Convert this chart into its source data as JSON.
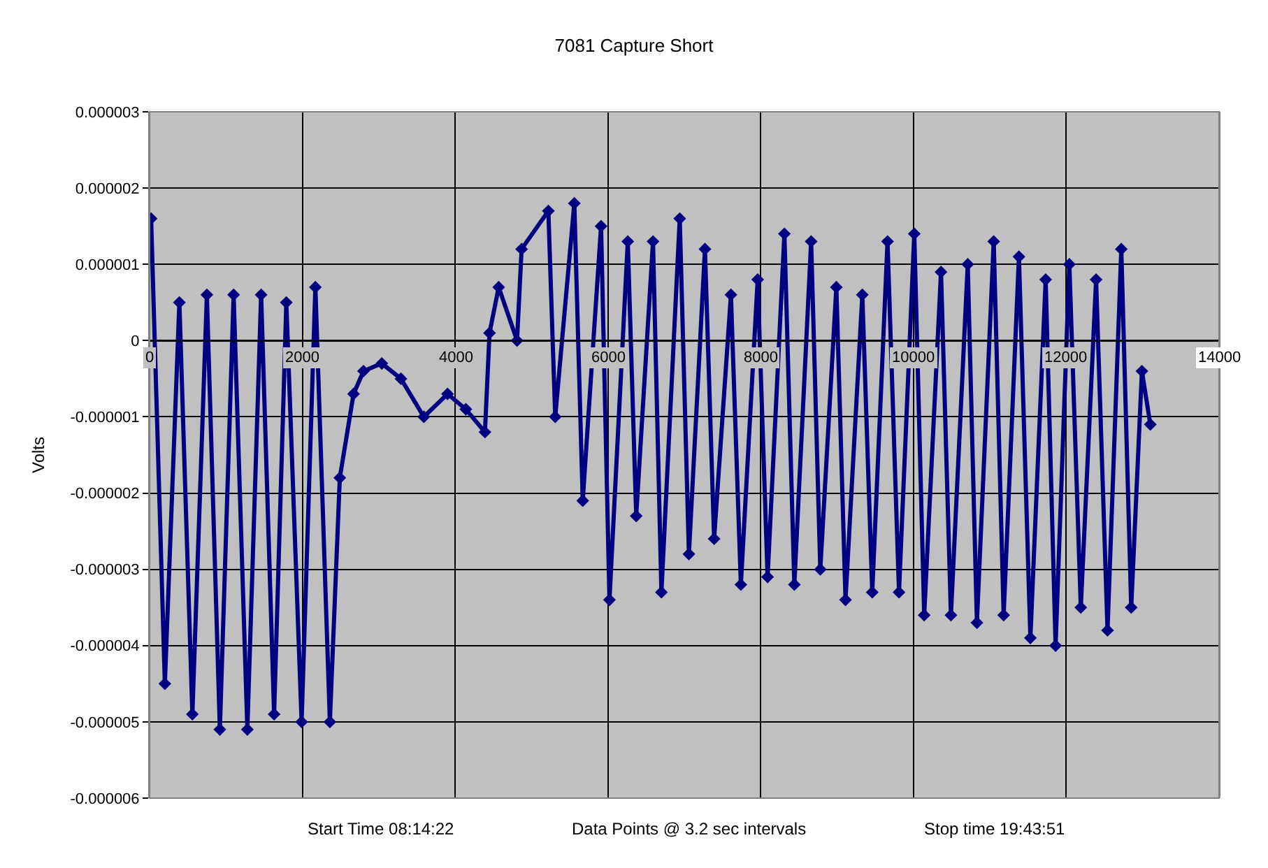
{
  "chart_data": {
    "type": "line",
    "title": "7081 Capture Short",
    "ylabel": "Volts",
    "annotations": [
      "Start Time 08:14:22",
      "Data Points @ 3.2 sec intervals",
      "Stop time 19:43:51"
    ],
    "x": [
      20,
      200,
      390,
      560,
      750,
      920,
      1100,
      1280,
      1460,
      1630,
      1790,
      1990,
      2170,
      2360,
      2490,
      2670,
      2800,
      3040,
      3290,
      3590,
      3900,
      4140,
      4390,
      4450,
      4570,
      4810,
      4870,
      5220,
      5310,
      5560,
      5670,
      5910,
      6020,
      6260,
      6370,
      6590,
      6700,
      6940,
      7060,
      7270,
      7390,
      7610,
      7740,
      7960,
      8090,
      8310,
      8440,
      8660,
      8780,
      8990,
      9110,
      9330,
      9460,
      9660,
      9810,
      10010,
      10140,
      10360,
      10490,
      10710,
      10830,
      11050,
      11180,
      11380,
      11530,
      11730,
      11860,
      12040,
      12190,
      12390,
      12540,
      12720,
      12850,
      12990,
      13100
    ],
    "series": [
      {
        "color": "#000080",
        "values": [
          1.6e-06,
          -4.5e-06,
          5e-07,
          -4.9e-06,
          6e-07,
          -5.1e-06,
          6e-07,
          -5.1e-06,
          6e-07,
          -4.9e-06,
          5e-07,
          -5e-06,
          7e-07,
          -5e-06,
          -1.8e-06,
          -7e-07,
          -4e-07,
          -3e-07,
          -5e-07,
          -1e-06,
          -7e-07,
          -9e-07,
          -1.2e-06,
          1e-07,
          7e-07,
          0.0,
          1.2e-06,
          1.7e-06,
          -1e-06,
          1.8e-06,
          -2.1e-06,
          1.5e-06,
          -3.4e-06,
          1.3e-06,
          -2.3e-06,
          1.3e-06,
          -3.3e-06,
          1.6e-06,
          -2.8e-06,
          1.2e-06,
          -2.6e-06,
          6e-07,
          -3.2e-06,
          8e-07,
          -3.1e-06,
          1.4e-06,
          -3.2e-06,
          1.3e-06,
          -3e-06,
          7e-07,
          -3.4e-06,
          6e-07,
          -3.3e-06,
          1.3e-06,
          -3.3e-06,
          1.4e-06,
          -3.6e-06,
          9e-07,
          -3.6e-06,
          1e-06,
          -3.7e-06,
          1.3e-06,
          -3.6e-06,
          1.1e-06,
          -3.9e-06,
          8e-07,
          -4e-06,
          1e-06,
          -3.5e-06,
          8e-07,
          -3.8e-06,
          1.2e-06,
          -3.5e-06,
          -4e-07,
          -1.1e-06
        ]
      }
    ],
    "xlim": [
      0,
      14000
    ],
    "xticks": [
      0,
      2000,
      4000,
      6000,
      8000,
      10000,
      12000,
      14000
    ],
    "ylim": [
      -6e-06,
      3e-06
    ],
    "yticks": [
      {
        "value": 3e-06,
        "label": "0.000003"
      },
      {
        "value": 2e-06,
        "label": "0.000002"
      },
      {
        "value": 1e-06,
        "label": "0.000001"
      },
      0,
      {
        "value": -1e-06,
        "label": "-0.000001"
      },
      {
        "value": -2e-06,
        "label": "-0.000002"
      },
      {
        "value": -3e-06,
        "label": "-0.000003"
      },
      {
        "value": -4e-06,
        "label": "-0.000004"
      },
      {
        "value": -5e-06,
        "label": "-0.000005"
      },
      {
        "value": -6e-06,
        "label": "-0.000006"
      }
    ],
    "grid": true,
    "marker": "diamond",
    "line_style": "solid"
  }
}
